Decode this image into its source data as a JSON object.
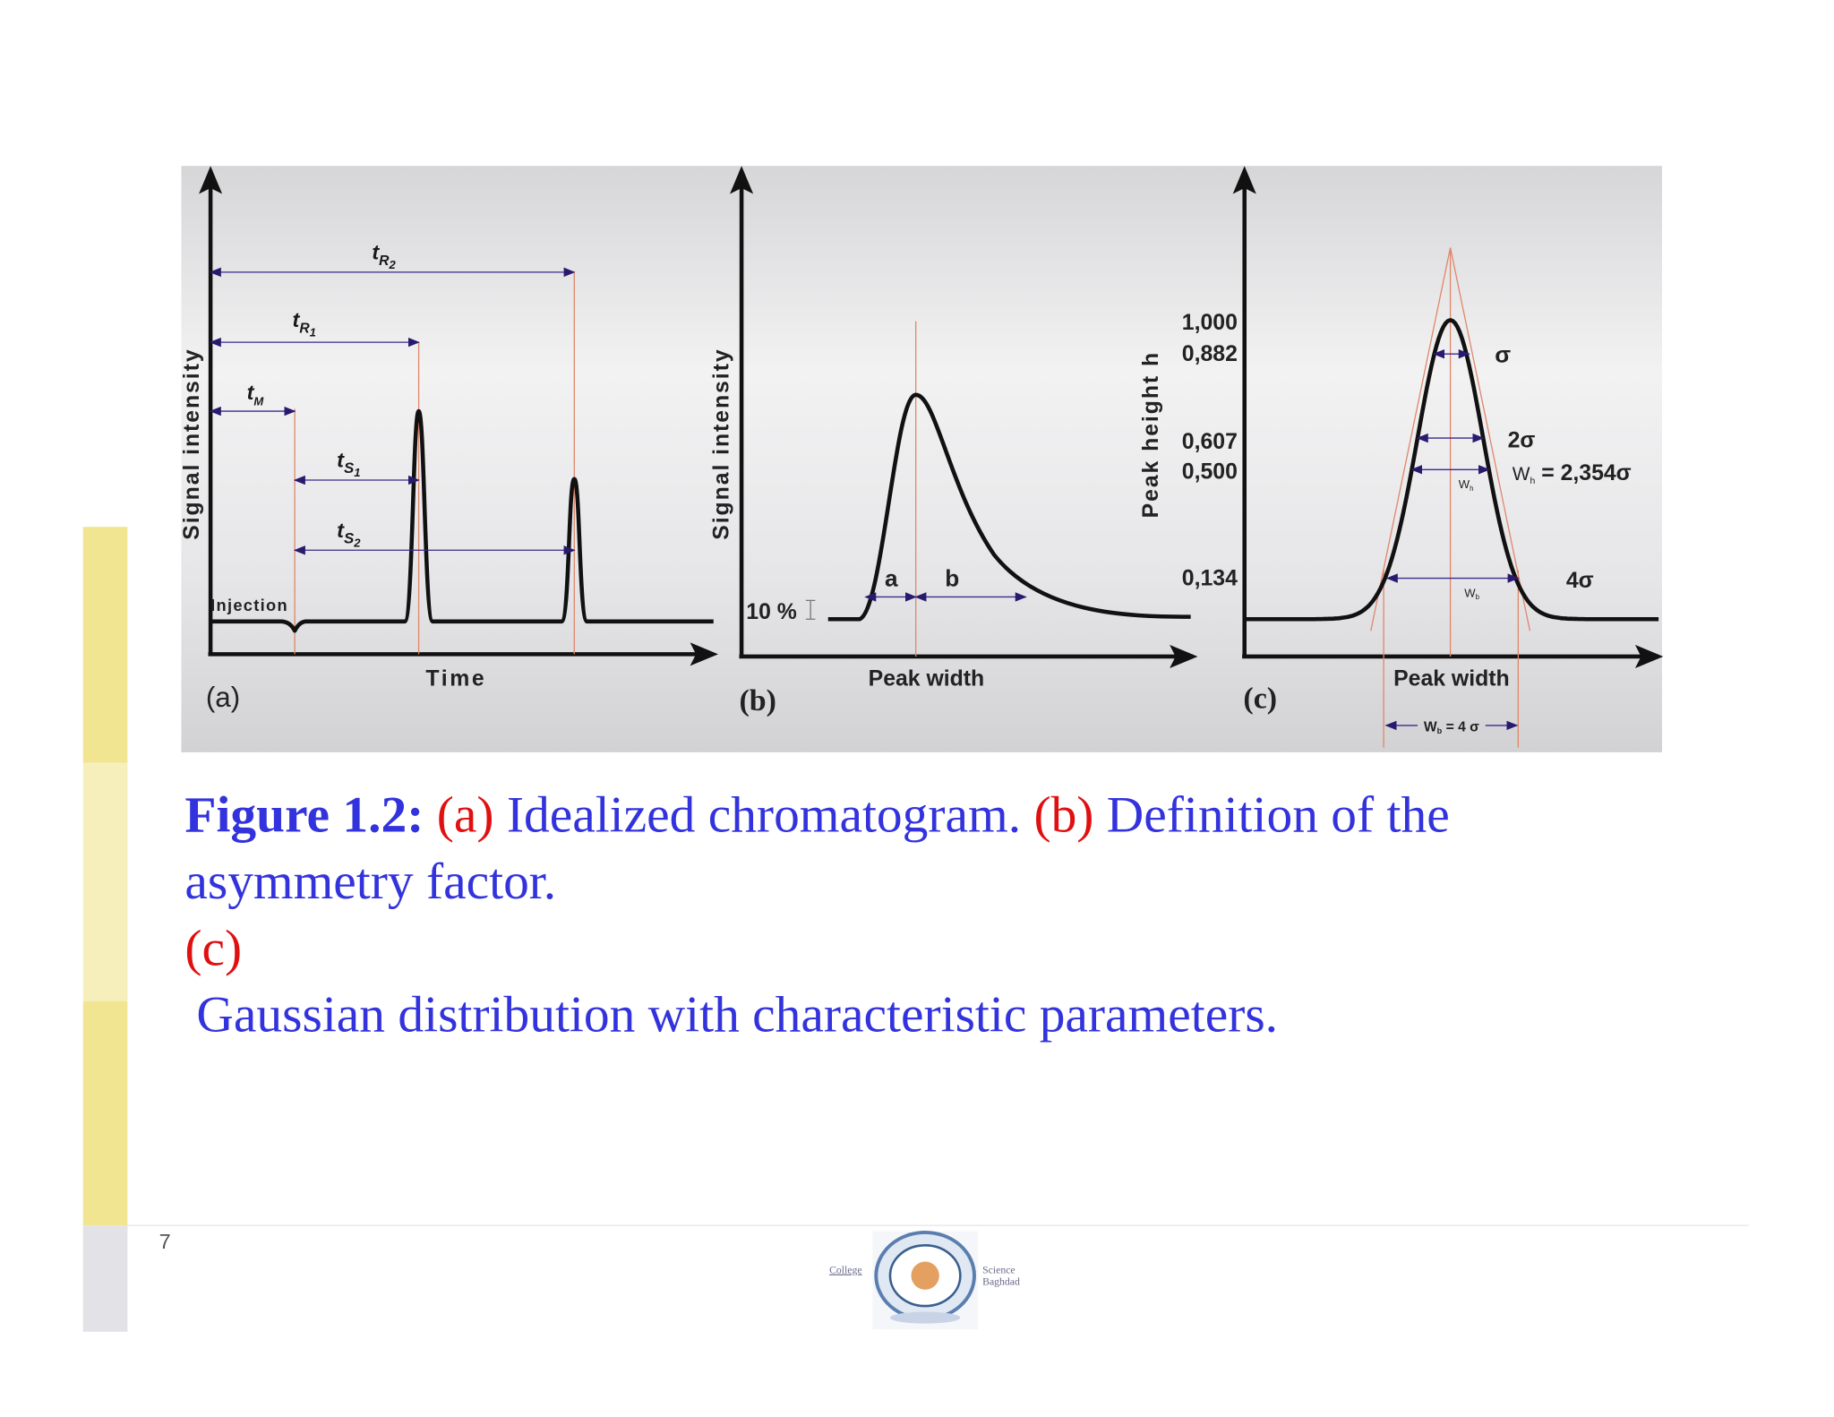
{
  "figure": {
    "panel_a": {
      "y_label": "Signal intensity",
      "x_label": "Time",
      "tag": "(a)",
      "injection": "Injection",
      "tR2": {
        "main": "t",
        "sub": "R",
        "subsub": "2"
      },
      "tR1": {
        "main": "t",
        "sub": "R",
        "subsub": "1"
      },
      "tM": {
        "main": "t",
        "sub": "M"
      },
      "tS1": {
        "main": "t",
        "sub": "S",
        "subsub": "1"
      },
      "tS2": {
        "main": "t",
        "sub": "S",
        "subsub": "2"
      }
    },
    "panel_b": {
      "y_label": "Signal intensity",
      "x_label": "Peak width",
      "tag": "(b)",
      "ten_percent": "10 %",
      "a": "a",
      "b": "b"
    },
    "panel_c": {
      "y_label": "Peak height  h",
      "x_label": "Peak width",
      "tag": "(c)",
      "levels": [
        "1,000",
        "0,882",
        "0,607",
        "0,500",
        "0,134"
      ],
      "sigma": "σ",
      "two_sigma": "2σ",
      "four_sigma": "4σ",
      "wh_eq": {
        "main": "W",
        "sub": "h",
        "rest": " = 2,354σ"
      },
      "wh_small": {
        "main": "W",
        "sub": "h"
      },
      "wb_small": {
        "main": "W",
        "sub": "b"
      },
      "wb_eq": {
        "main": "W",
        "sub": "b",
        "rest": " = 4 σ"
      }
    }
  },
  "caption": {
    "label": "Figure 1.2:",
    "a": "(a)",
    "a_text": "Idealized chromatogram.",
    "b": "(b)",
    "b_text_1": "Definition of the",
    "b_text_2": "asymmetry factor.",
    "c": "(c)",
    "c_text": "Gaussian distribution with characteristic parameters."
  },
  "footer": {
    "page_number": "7",
    "logo_left": "College",
    "logo_right_1": "Science",
    "logo_right_2": "Baghdad"
  }
}
